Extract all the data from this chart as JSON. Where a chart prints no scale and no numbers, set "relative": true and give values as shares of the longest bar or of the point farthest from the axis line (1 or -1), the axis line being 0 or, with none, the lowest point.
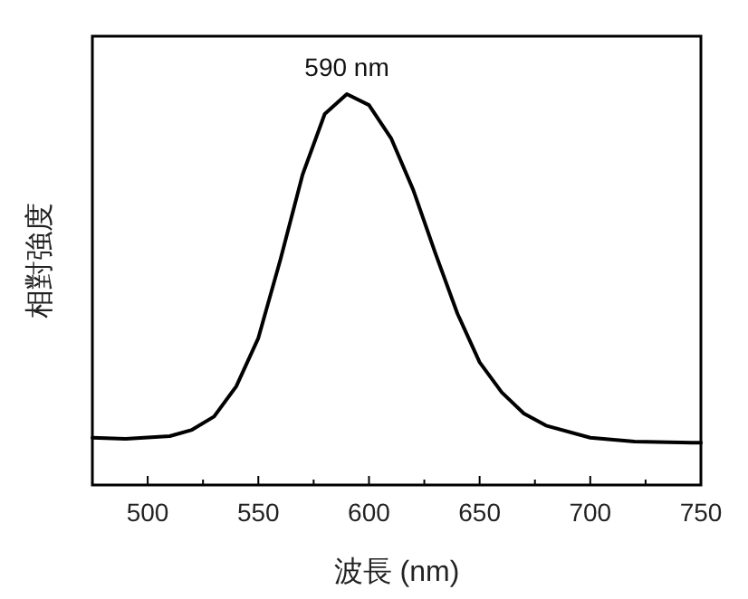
{
  "chart_data": {
    "type": "line",
    "xlabel": "波長 (nm)",
    "ylabel": "相對強度",
    "relative": true,
    "color": "#000000",
    "annotations": [
      {
        "text": "590 nm",
        "x": 590,
        "y": 1
      }
    ],
    "xlim": [
      475,
      750
    ],
    "xticks": [
      500,
      {
        "value": 525,
        "label": null
      },
      550,
      {
        "value": 575,
        "label": null
      },
      600,
      {
        "value": 625,
        "label": null
      },
      650,
      {
        "value": 675,
        "label": null
      },
      700,
      {
        "value": 725,
        "label": null
      },
      750
    ],
    "x": [
      475,
      490,
      510,
      520,
      530,
      540,
      550,
      560,
      570,
      580,
      590,
      600,
      610,
      620,
      630,
      640,
      650,
      660,
      670,
      680,
      700,
      720,
      750
    ],
    "values": [
      0.121,
      0.118,
      0.125,
      0.141,
      0.175,
      0.252,
      0.376,
      0.577,
      0.794,
      0.949,
      1,
      0.972,
      0.887,
      0.755,
      0.593,
      0.438,
      0.314,
      0.237,
      0.183,
      0.152,
      0.121,
      0.111,
      0.108
    ]
  }
}
